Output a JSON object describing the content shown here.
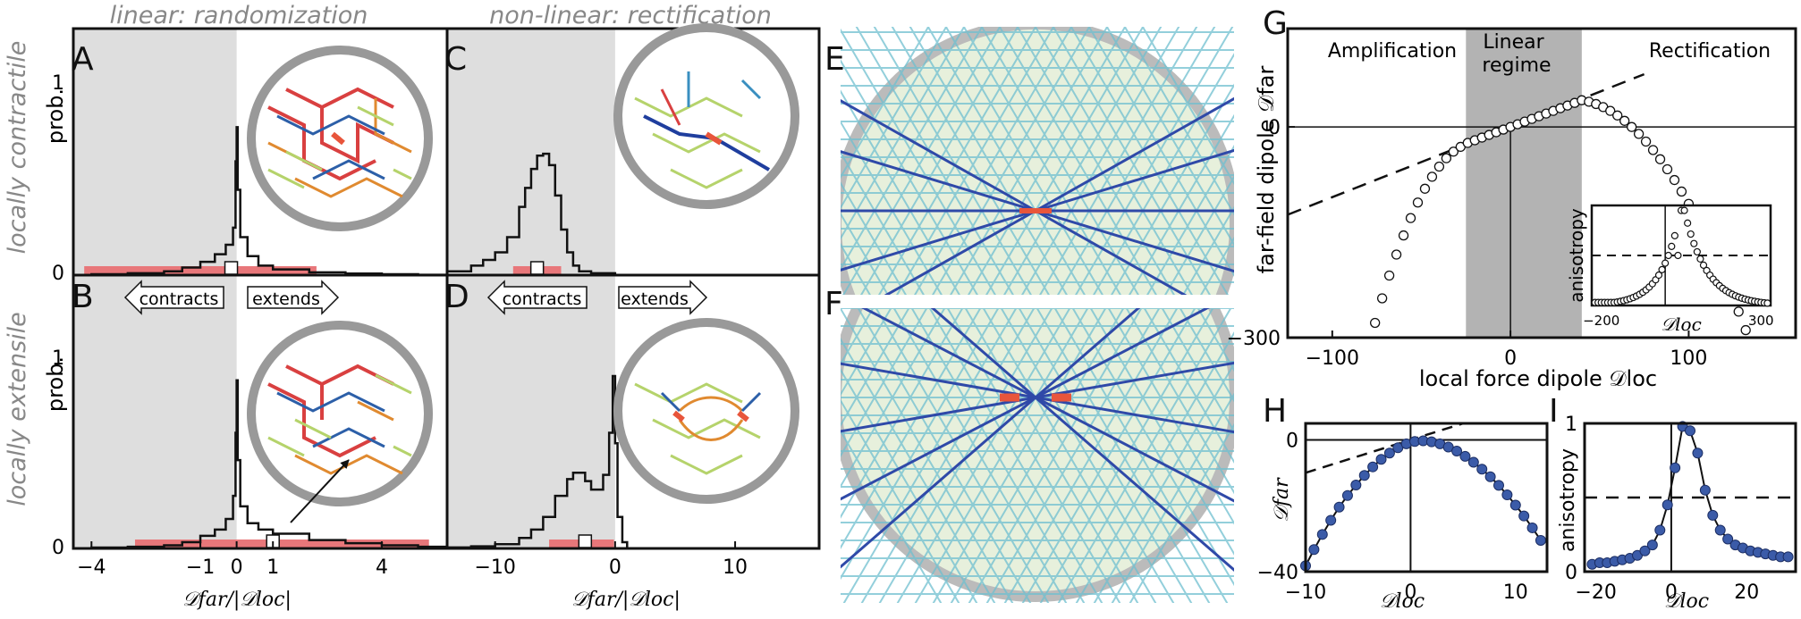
{
  "chart_data": [
    {
      "id": "AB",
      "type": "line",
      "column_title": "linear: randomization",
      "row_labels": [
        "locally contractile",
        "locally extensile"
      ],
      "ylabel": "prob.",
      "xlabel": "𝒟far/|𝒟loc|",
      "xlim": [
        -4.5,
        5.8
      ],
      "x_ticks": [
        "−4",
        "−1",
        "0",
        "1",
        "4"
      ],
      "x_tick_values": [
        -4,
        -1,
        0,
        1,
        4
      ],
      "y_ticks": [
        "0",
        "1"
      ],
      "panels": [
        {
          "letter": "A",
          "ylim": [
            0,
            1.3
          ],
          "x": [
            -4.5,
            -4,
            -3,
            -2,
            -1.5,
            -1,
            -0.6,
            -0.3,
            -0.1,
            -0.03,
            0,
            0.03,
            0.1,
            0.3,
            0.6,
            1,
            2,
            3,
            4,
            5,
            5.8
          ],
          "y": [
            0.0,
            0.005,
            0.01,
            0.02,
            0.04,
            0.07,
            0.11,
            0.16,
            0.25,
            0.6,
            0.78,
            0.45,
            0.2,
            0.1,
            0.05,
            0.03,
            0.015,
            0.008,
            0.005,
            0.002,
            0.0
          ],
          "median_marker": -0.15,
          "iqr": [
            -4.2,
            2.2
          ]
        },
        {
          "letter": "B",
          "ylim": [
            0,
            1.3
          ],
          "x": [
            -4.5,
            -4,
            -3,
            -2,
            -1.5,
            -1,
            -0.6,
            -0.3,
            -0.1,
            -0.03,
            0,
            0.03,
            0.1,
            0.3,
            0.6,
            1,
            2,
            3,
            4,
            5,
            5.8
          ],
          "y": [
            0.0,
            0.004,
            0.008,
            0.015,
            0.03,
            0.06,
            0.09,
            0.14,
            0.25,
            0.55,
            0.8,
            0.42,
            0.2,
            0.12,
            0.09,
            0.07,
            0.04,
            0.025,
            0.015,
            0.008,
            0.0
          ],
          "median_marker": 1,
          "iqr": [
            -2.8,
            5.3
          ]
        }
      ],
      "arrows": [
        "contracts",
        "extends"
      ]
    },
    {
      "id": "CD",
      "type": "line",
      "column_title": "non-linear: rectification",
      "xlabel": "𝒟far/|𝒟loc|",
      "xlim": [
        -14,
        17
      ],
      "x_ticks": [
        "−10",
        "0",
        "10"
      ],
      "x_tick_values": [
        -10,
        0,
        10
      ],
      "panels": [
        {
          "letter": "C",
          "ylim": [
            0,
            1.3
          ],
          "x": [
            -14,
            -12,
            -11,
            -10,
            -9,
            -8,
            -7.5,
            -7,
            -6.5,
            -6,
            -5.5,
            -5,
            -4.5,
            -4,
            -3.5,
            -3,
            -2,
            0,
            17
          ],
          "y": [
            0.02,
            0.05,
            0.08,
            0.12,
            0.2,
            0.36,
            0.46,
            0.56,
            0.63,
            0.64,
            0.58,
            0.42,
            0.24,
            0.12,
            0.05,
            0.02,
            0.01,
            0.0,
            0.0
          ],
          "median_marker": -6.5,
          "iqr": [
            -8.5,
            -4.5
          ]
        },
        {
          "letter": "D",
          "ylim": [
            0,
            1.3
          ],
          "x": [
            -14,
            -12,
            -10,
            -8,
            -7,
            -6,
            -5,
            -4,
            -3.5,
            -3,
            -2.5,
            -2,
            -1.5,
            -1,
            -0.5,
            -0.2,
            0,
            0.2,
            0.6,
            1,
            17
          ],
          "y": [
            0.005,
            0.01,
            0.02,
            0.05,
            0.09,
            0.15,
            0.25,
            0.33,
            0.36,
            0.36,
            0.32,
            0.28,
            0.28,
            0.35,
            0.55,
            0.82,
            0.5,
            0.15,
            0.03,
            0.0,
            0.0
          ],
          "median_marker": -2.5,
          "iqr": [
            -5.5,
            -0.1
          ]
        }
      ],
      "arrows": [
        "contracts",
        "extends"
      ]
    },
    {
      "id": "G",
      "type": "scatter",
      "letter": "G",
      "xlabel": "local force dipole 𝒟loc",
      "ylabel": "far-field dipole 𝒟far",
      "xlim": [
        -125,
        160
      ],
      "ylim": [
        -300,
        140
      ],
      "x_ticks": [
        "−100",
        "0",
        "100"
      ],
      "x_tick_values": [
        -100,
        0,
        100
      ],
      "y_ticks": [
        "−300",
        "0"
      ],
      "y_tick_values": [
        -300,
        0
      ],
      "regions": [
        "Amplification",
        "Linear regime",
        "Rectification"
      ],
      "linear_regime": [
        -25,
        40
      ],
      "series": [
        {
          "style": "open-circles",
          "x_range": [
            -80,
            160
          ],
          "peak_x": 40
        },
        {
          "style": "dashed",
          "slope": 1,
          "intercept": 0
        }
      ],
      "inset": {
        "xlabel": "𝒟loc",
        "ylabel": "anisotropy",
        "x_ticks": [
          "−200",
          "300"
        ],
        "x_tick_values": [
          -200,
          300
        ],
        "xlim": [
          -230,
          330
        ],
        "ylim": [
          0,
          1
        ],
        "dashed_level": 0.5
      }
    },
    {
      "id": "H",
      "type": "scatter",
      "letter": "H",
      "xlabel": "𝒟loc",
      "ylabel": "𝒟far",
      "xlim": [
        -10,
        13
      ],
      "ylim": [
        -40,
        5
      ],
      "x_ticks": [
        "−10",
        "0",
        "10"
      ],
      "x_tick_values": [
        -10,
        0,
        10
      ],
      "y_ticks": [
        "−40",
        "0"
      ],
      "y_tick_values": [
        -40,
        0
      ],
      "x": [
        -10,
        -9.2,
        -8.4,
        -7.6,
        -6.8,
        -6,
        -5.2,
        -4.4,
        -3.6,
        -2.8,
        -2,
        -1.2,
        -0.4,
        0.4,
        1.2,
        2,
        2.8,
        3.6,
        4.4,
        5.2,
        6,
        6.8,
        7.6,
        8.4,
        9.2,
        10,
        10.8,
        11.6,
        12.4
      ],
      "y": [
        -38.2,
        -33.3,
        -28.7,
        -24.4,
        -20.4,
        -16.9,
        -13.7,
        -10.8,
        -8.2,
        -5.9,
        -4,
        -2.4,
        -1.2,
        -0.5,
        -0.3,
        -0.6,
        -1.2,
        -2.2,
        -3.4,
        -5,
        -6.8,
        -8.9,
        -11.2,
        -13.8,
        -16.7,
        -19.8,
        -23.1,
        -26.7,
        -30.5
      ],
      "dashed_slope": 1
    },
    {
      "id": "I",
      "type": "scatter",
      "letter": "I",
      "xlabel": "𝒟loc",
      "ylabel": "anisotropy",
      "xlim": [
        -23,
        33
      ],
      "ylim": [
        0,
        1
      ],
      "x_ticks": [
        "−20",
        "0",
        "20"
      ],
      "x_tick_values": [
        -20,
        0,
        20
      ],
      "y_ticks": [
        "0",
        "1"
      ],
      "y_tick_values": [
        0,
        1
      ],
      "x": [
        -21,
        -19,
        -17,
        -15,
        -13,
        -11,
        -9,
        -7,
        -5,
        -3,
        -1,
        1,
        3,
        5,
        7,
        9,
        11,
        13,
        15,
        17,
        19,
        21,
        23,
        25,
        27,
        29,
        31
      ],
      "y": [
        0.05,
        0.06,
        0.06,
        0.07,
        0.08,
        0.09,
        0.11,
        0.14,
        0.18,
        0.28,
        0.45,
        0.7,
        0.98,
        0.95,
        0.8,
        0.55,
        0.38,
        0.28,
        0.22,
        0.18,
        0.16,
        0.14,
        0.13,
        0.12,
        0.11,
        0.1,
        0.1
      ],
      "dashed_level": 0.5
    }
  ],
  "network_panels": {
    "E": "E",
    "F": "F"
  }
}
